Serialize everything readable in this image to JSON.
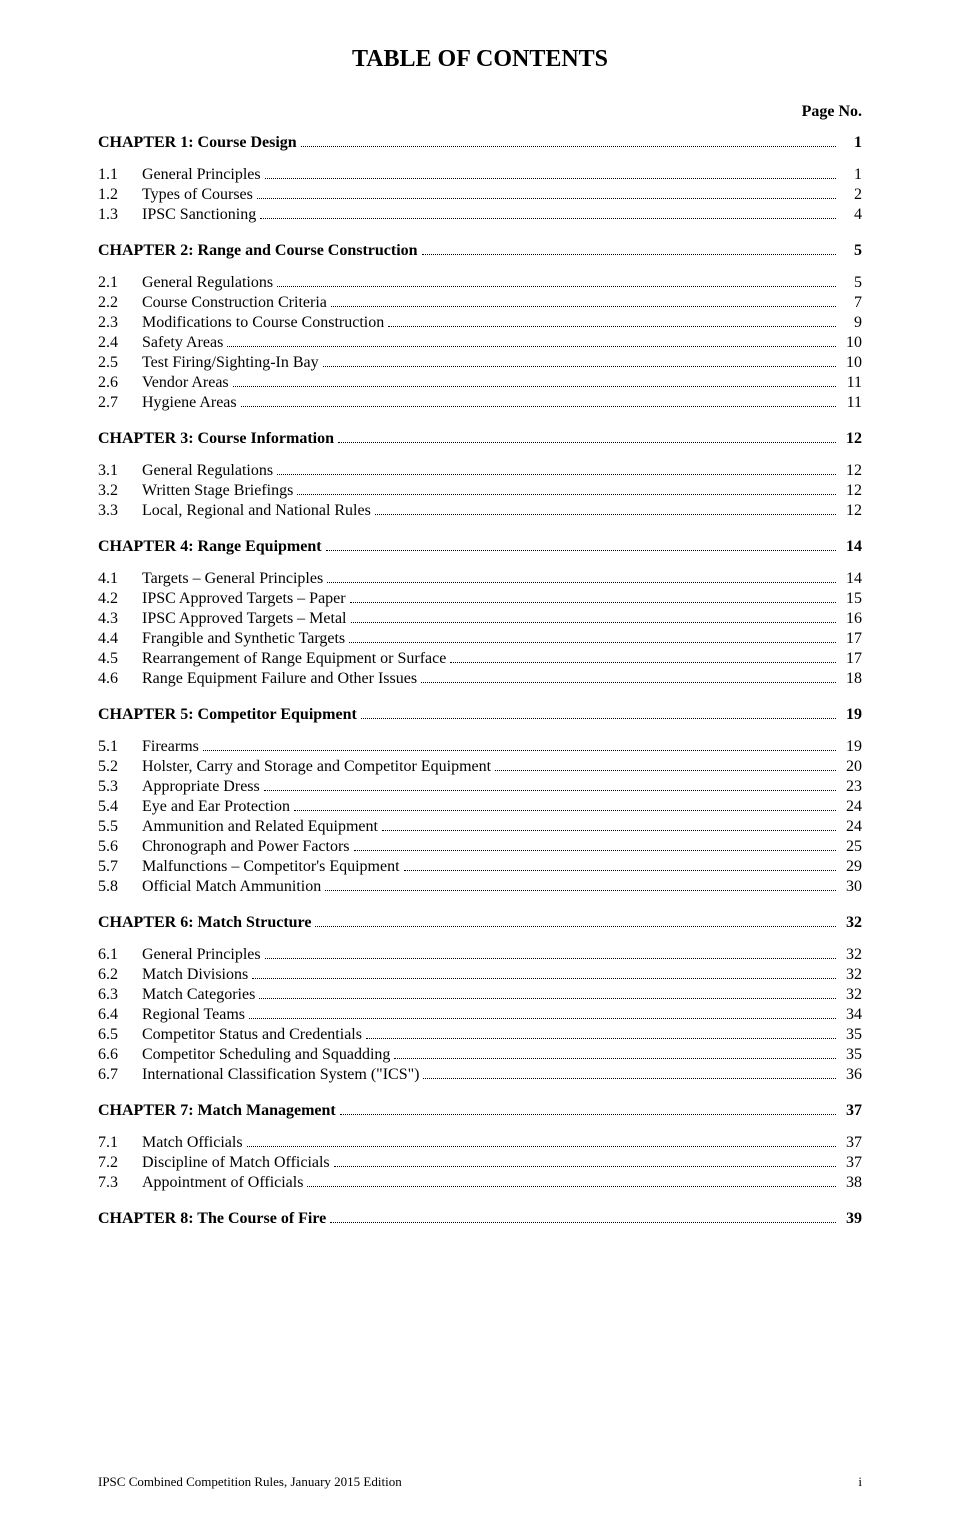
{
  "title": "TABLE OF CONTENTS",
  "page_no_label": "Page No.",
  "footer_left": "IPSC Combined Competition Rules, January 2015 Edition",
  "footer_right": "i",
  "chapters": [
    {
      "title": "CHAPTER 1:  Course Design",
      "page": "1",
      "items": [
        {
          "num": "1.1",
          "label": "General Principles",
          "page": "1"
        },
        {
          "num": "1.2",
          "label": "Types of Courses",
          "page": "2"
        },
        {
          "num": "1.3",
          "label": "IPSC Sanctioning",
          "page": "4"
        }
      ]
    },
    {
      "title": "CHAPTER 2:  Range and Course Construction",
      "page": "5",
      "items": [
        {
          "num": "2.1",
          "label": "General Regulations",
          "page": "5"
        },
        {
          "num": "2.2",
          "label": "Course Construction Criteria",
          "page": "7"
        },
        {
          "num": "2.3",
          "label": "Modifications to Course Construction",
          "page": "9"
        },
        {
          "num": "2.4",
          "label": "Safety Areas",
          "page": "10"
        },
        {
          "num": "2.5",
          "label": "Test Firing/Sighting-In Bay",
          "page": "10"
        },
        {
          "num": "2.6",
          "label": "Vendor Areas",
          "page": "11"
        },
        {
          "num": "2.7",
          "label": "Hygiene Areas",
          "page": "11"
        }
      ]
    },
    {
      "title": "CHAPTER 3:  Course Information",
      "page": "12",
      "items": [
        {
          "num": "3.1",
          "label": "General Regulations",
          "page": "12"
        },
        {
          "num": "3.2",
          "label": "Written Stage Briefings",
          "page": "12"
        },
        {
          "num": "3.3",
          "label": "Local, Regional and National Rules",
          "page": "12"
        }
      ]
    },
    {
      "title": "CHAPTER 4:  Range Equipment",
      "page": "14",
      "items": [
        {
          "num": "4.1",
          "label": "Targets – General Principles",
          "page": "14"
        },
        {
          "num": "4.2",
          "label": "IPSC Approved Targets – Paper",
          "page": "15"
        },
        {
          "num": "4.3",
          "label": "IPSC Approved Targets – Metal",
          "page": "16"
        },
        {
          "num": "4.4",
          "label": "Frangible and Synthetic Targets",
          "page": "17"
        },
        {
          "num": "4.5",
          "label": "Rearrangement of Range Equipment or Surface",
          "page": "17"
        },
        {
          "num": "4.6",
          "label": "Range Equipment Failure and Other Issues",
          "page": "18"
        }
      ]
    },
    {
      "title": "CHAPTER 5:  Competitor Equipment",
      "page": "19",
      "items": [
        {
          "num": "5.1",
          "label": "Firearms",
          "page": "19"
        },
        {
          "num": "5.2",
          "label": "Holster, Carry and Storage and Competitor Equipment",
          "page": "20"
        },
        {
          "num": "5.3",
          "label": "Appropriate Dress",
          "page": "23"
        },
        {
          "num": "5.4",
          "label": "Eye and Ear Protection",
          "page": "24"
        },
        {
          "num": "5.5",
          "label": "Ammunition and Related Equipment",
          "page": "24"
        },
        {
          "num": "5.6",
          "label": "Chronograph and Power Factors",
          "page": "25"
        },
        {
          "num": "5.7",
          "label": "Malfunctions – Competitor's Equipment",
          "page": "29"
        },
        {
          "num": "5.8",
          "label": "Official Match Ammunition",
          "page": "30"
        }
      ]
    },
    {
      "title": "CHAPTER 6:  Match Structure",
      "page": "32",
      "items": [
        {
          "num": "6.1",
          "label": "General Principles",
          "page": "32"
        },
        {
          "num": "6.2",
          "label": "Match Divisions",
          "page": "32"
        },
        {
          "num": "6.3",
          "label": "Match Categories",
          "page": "32"
        },
        {
          "num": "6.4",
          "label": "Regional Teams",
          "page": "34"
        },
        {
          "num": "6.5",
          "label": "Competitor Status and Credentials",
          "page": "35"
        },
        {
          "num": "6.6",
          "label": "Competitor Scheduling and Squadding",
          "page": "35"
        },
        {
          "num": "6.7",
          "label": "International Classification System (\"ICS\")",
          "page": "36"
        }
      ]
    },
    {
      "title": "CHAPTER 7:  Match Management",
      "page": "37",
      "items": [
        {
          "num": "7.1",
          "label": "Match Officials",
          "page": "37"
        },
        {
          "num": "7.2",
          "label": "Discipline of Match Officials",
          "page": "37"
        },
        {
          "num": "7.3",
          "label": "Appointment of Officials",
          "page": "38"
        }
      ]
    },
    {
      "title": "CHAPTER 8:  The Course of Fire",
      "page": "39",
      "items": []
    }
  ]
}
